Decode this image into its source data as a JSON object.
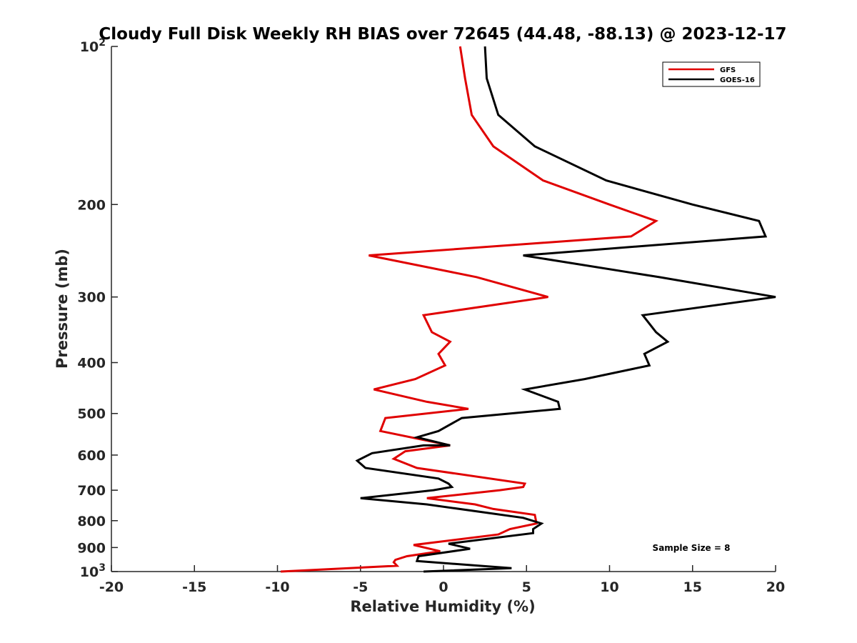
{
  "chart_data": {
    "type": "line",
    "title": "Cloudy Full Disk Weekly RH BIAS over 72645 (44.48, -88.13) @ 2023-12-17",
    "xlabel": "Relative Humidity (%)",
    "ylabel": "Pressure (mb)",
    "xlim": [
      -20,
      20
    ],
    "ylim": [
      100,
      1000
    ],
    "y_scale": "log",
    "y_reversed": true,
    "grid": false,
    "legend_position": "top-right",
    "x_ticks": [
      -20,
      -15,
      -10,
      -5,
      0,
      5,
      10,
      15,
      20
    ],
    "x_tick_labels": [
      "-20",
      "-15",
      "-10",
      "-5",
      "0",
      "5",
      "10",
      "15",
      "20"
    ],
    "y_ticks": [
      100,
      200,
      300,
      400,
      500,
      600,
      700,
      800,
      900,
      1000
    ],
    "y_tick_labels": [
      {
        "base": "10",
        "exp": "2"
      },
      {
        "base": "200",
        "exp": ""
      },
      {
        "base": "300",
        "exp": ""
      },
      {
        "base": "400",
        "exp": ""
      },
      {
        "base": "500",
        "exp": ""
      },
      {
        "base": "600",
        "exp": ""
      },
      {
        "base": "700",
        "exp": ""
      },
      {
        "base": "800",
        "exp": ""
      },
      {
        "base": "900",
        "exp": ""
      },
      {
        "base": "10",
        "exp": "3"
      }
    ],
    "annotation": "Sample Size = 8",
    "series": [
      {
        "name": "GFS",
        "color": "#e00000",
        "points": [
          {
            "x": 1.0,
            "p": 100
          },
          {
            "x": 1.3,
            "p": 115
          },
          {
            "x": 1.7,
            "p": 135
          },
          {
            "x": 3.0,
            "p": 155
          },
          {
            "x": 6.0,
            "p": 180
          },
          {
            "x": 10.0,
            "p": 200
          },
          {
            "x": 12.8,
            "p": 215
          },
          {
            "x": 11.3,
            "p": 230
          },
          {
            "x": -4.5,
            "p": 250
          },
          {
            "x": 2.0,
            "p": 275
          },
          {
            "x": 6.3,
            "p": 300
          },
          {
            "x": -1.2,
            "p": 325
          },
          {
            "x": -0.7,
            "p": 350
          },
          {
            "x": 0.4,
            "p": 365
          },
          {
            "x": -0.3,
            "p": 385
          },
          {
            "x": 0.1,
            "p": 405
          },
          {
            "x": -1.7,
            "p": 430
          },
          {
            "x": -4.2,
            "p": 450
          },
          {
            "x": -1.0,
            "p": 475
          },
          {
            "x": 1.5,
            "p": 490
          },
          {
            "x": -3.5,
            "p": 510
          },
          {
            "x": -3.8,
            "p": 540
          },
          {
            "x": 0.4,
            "p": 575
          },
          {
            "x": -2.3,
            "p": 590
          },
          {
            "x": -3.0,
            "p": 610
          },
          {
            "x": -1.6,
            "p": 635
          },
          {
            "x": 4.9,
            "p": 680
          },
          {
            "x": 4.8,
            "p": 690
          },
          {
            "x": 3.4,
            "p": 700
          },
          {
            "x": -1.0,
            "p": 725
          },
          {
            "x": 1.9,
            "p": 745
          },
          {
            "x": 3.0,
            "p": 760
          },
          {
            "x": 5.5,
            "p": 780
          },
          {
            "x": 5.6,
            "p": 810
          },
          {
            "x": 4.0,
            "p": 830
          },
          {
            "x": 3.3,
            "p": 850
          },
          {
            "x": -1.8,
            "p": 890
          },
          {
            "x": -0.2,
            "p": 915
          },
          {
            "x": -2.2,
            "p": 935
          },
          {
            "x": -2.9,
            "p": 950
          },
          {
            "x": -3.0,
            "p": 960
          },
          {
            "x": -2.8,
            "p": 975
          },
          {
            "x": -9.8,
            "p": 1000
          }
        ]
      },
      {
        "name": "GOES-16",
        "color": "#000000",
        "points": [
          {
            "x": 2.5,
            "p": 100
          },
          {
            "x": 2.6,
            "p": 115
          },
          {
            "x": 3.3,
            "p": 135
          },
          {
            "x": 5.5,
            "p": 155
          },
          {
            "x": 9.8,
            "p": 180
          },
          {
            "x": 15.0,
            "p": 200
          },
          {
            "x": 19.0,
            "p": 215
          },
          {
            "x": 19.4,
            "p": 230
          },
          {
            "x": 4.8,
            "p": 250
          },
          {
            "x": 13.0,
            "p": 275
          },
          {
            "x": 20.0,
            "p": 300
          },
          {
            "x": 12.0,
            "p": 325
          },
          {
            "x": 12.8,
            "p": 350
          },
          {
            "x": 13.5,
            "p": 365
          },
          {
            "x": 12.1,
            "p": 385
          },
          {
            "x": 12.4,
            "p": 405
          },
          {
            "x": 8.5,
            "p": 430
          },
          {
            "x": 4.9,
            "p": 450
          },
          {
            "x": 6.9,
            "p": 475
          },
          {
            "x": 7.0,
            "p": 490
          },
          {
            "x": 1.1,
            "p": 510
          },
          {
            "x": -0.3,
            "p": 540
          },
          {
            "x": -1.6,
            "p": 555
          },
          {
            "x": 0.4,
            "p": 575
          },
          {
            "x": -1.2,
            "p": 575
          },
          {
            "x": -4.3,
            "p": 595
          },
          {
            "x": -5.2,
            "p": 615
          },
          {
            "x": -4.7,
            "p": 635
          },
          {
            "x": -0.3,
            "p": 665
          },
          {
            "x": 0.3,
            "p": 680
          },
          {
            "x": 0.5,
            "p": 690
          },
          {
            "x": -0.6,
            "p": 700
          },
          {
            "x": -5.0,
            "p": 725
          },
          {
            "x": -1.0,
            "p": 745
          },
          {
            "x": 4.8,
            "p": 790
          },
          {
            "x": 5.9,
            "p": 810
          },
          {
            "x": 5.4,
            "p": 830
          },
          {
            "x": 5.4,
            "p": 845
          },
          {
            "x": 0.3,
            "p": 885
          },
          {
            "x": 1.6,
            "p": 905
          },
          {
            "x": -1.5,
            "p": 935
          },
          {
            "x": -1.6,
            "p": 955
          },
          {
            "x": 4.1,
            "p": 985
          },
          {
            "x": -1.2,
            "p": 1000
          }
        ]
      }
    ]
  }
}
